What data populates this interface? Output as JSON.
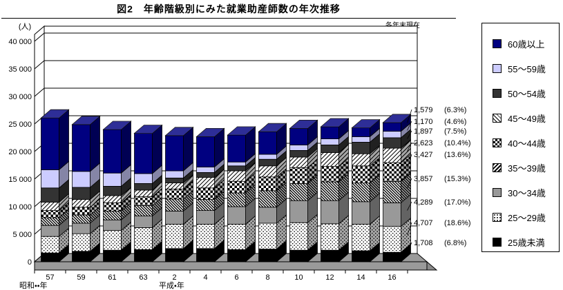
{
  "title": "図2　年齢階級別にみた就業助産師数の年次推移",
  "note": "各年末現在",
  "legend": {
    "items": [
      {
        "label": "60歳以上"
      },
      {
        "label": "55〜59歳"
      },
      {
        "label": "50〜54歳"
      },
      {
        "label": "45〜49歳"
      },
      {
        "label": "40〜44歳"
      },
      {
        "label": "35〜39歳"
      },
      {
        "label": "30〜34歳"
      },
      {
        "label": "25〜29歳"
      },
      {
        "label": "25歳未満"
      }
    ]
  },
  "chart_data": {
    "type": "bar",
    "subtype": "stacked-3d-column",
    "title": "図2　年齢階級別にみた就業助産師数の年次推移",
    "note": "各年末現在",
    "unit_label": "(人)",
    "categories": [
      "57",
      "59",
      "61",
      "63",
      "2",
      "4",
      "6",
      "8",
      "10",
      "12",
      "14",
      "16"
    ],
    "era_labels": [
      {
        "text": "昭和・・年",
        "position": "left"
      },
      {
        "text": "平成・年",
        "position": "under-2"
      }
    ],
    "y_axis": {
      "min": 0,
      "max": 40000,
      "step": 5000,
      "tick_labels": [
        "0",
        "5 000",
        "10 000",
        "15 000",
        "20 000",
        "25 000",
        "30 000",
        "35 000",
        "40 000"
      ]
    },
    "grid": true,
    "legend_position": "right",
    "series": [
      {
        "name": "25歳未満",
        "color": "#000000",
        "values": [
          1600,
          1900,
          2100,
          2200,
          2400,
          2400,
          2200,
          2300,
          2100,
          2100,
          2000,
          1708
        ]
      },
      {
        "name": "25〜29歳",
        "pattern": "dots",
        "values": [
          3000,
          3200,
          3600,
          4000,
          4400,
          4400,
          4600,
          4700,
          5000,
          4800,
          4800,
          4707
        ]
      },
      {
        "name": "30〜34歳",
        "color": "#999999",
        "values": [
          2000,
          1900,
          1900,
          2100,
          2400,
          2500,
          3200,
          2900,
          4000,
          4200,
          4100,
          4289
        ]
      },
      {
        "name": "35〜39歳",
        "pattern": "hatch-dark",
        "values": [
          1400,
          1500,
          1600,
          1900,
          2200,
          2000,
          2500,
          3000,
          3100,
          3400,
          3400,
          3857
        ]
      },
      {
        "name": "40〜44歳",
        "pattern": "checker",
        "values": [
          1300,
          1400,
          1500,
          1600,
          1800,
          2100,
          2100,
          2500,
          2900,
          2800,
          3100,
          3427
        ]
      },
      {
        "name": "45〜49歳",
        "pattern": "hatch-light",
        "values": [
          1500,
          1400,
          1300,
          1200,
          1100,
          1900,
          1900,
          2000,
          1900,
          2500,
          2200,
          2623
        ]
      },
      {
        "name": "50〜54歳",
        "color": "#333333",
        "values": [
          2600,
          2200,
          1700,
          1200,
          900,
          900,
          900,
          1200,
          1200,
          1400,
          2100,
          1897
        ]
      },
      {
        "name": "55〜59歳",
        "color": "#CCCCFF",
        "values": [
          3300,
          2900,
          2400,
          1800,
          1300,
          1000,
          700,
          900,
          1000,
          1100,
          1000,
          1170
        ]
      },
      {
        "name": "60歳以上",
        "color": "#000080",
        "values": [
          9400,
          8500,
          7900,
          7300,
          6400,
          5500,
          4900,
          4100,
          3000,
          2200,
          1600,
          1579
        ]
      }
    ],
    "callout": {
      "year": "16",
      "labels": [
        {
          "value": "1,579",
          "pct": "(6.3%)"
        },
        {
          "value": "1,170",
          "pct": "(4.6%)"
        },
        {
          "value": "1,897",
          "pct": "(7.5%)"
        },
        {
          "value": "2,623",
          "pct": "(10.4%)"
        },
        {
          "value": "3,427",
          "pct": "(13.6%)"
        },
        {
          "value": "3,857",
          "pct": "(15.3%)"
        },
        {
          "value": "4,289",
          "pct": "(17.0%)"
        },
        {
          "value": "4,707",
          "pct": "(18.6%)"
        },
        {
          "value": "1,708",
          "pct": "(6.8%)"
        }
      ]
    }
  }
}
